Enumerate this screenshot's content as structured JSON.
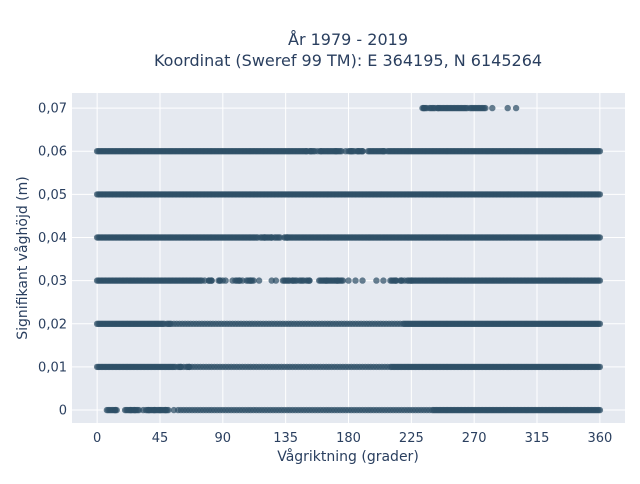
{
  "chart_data": {
    "type": "scatter",
    "title": "År 1979 - 2019",
    "subtitle": "Koordinat (Sweref 99 TM): E 364195, N 6145264",
    "xlabel": "Vågriktning (grader)",
    "ylabel": "Signifikant våghöjd (m)",
    "xlim": [
      -18,
      378
    ],
    "ylim": [
      -0.003,
      0.0735
    ],
    "x_ticks": [
      0,
      45,
      90,
      135,
      180,
      225,
      270,
      315,
      360
    ],
    "y_ticks": [
      0,
      0.01,
      0.02,
      0.03,
      0.04,
      0.05,
      0.06,
      0.07
    ],
    "y_tick_labels": [
      "0",
      "0,01",
      "0,02",
      "0,03",
      "0,04",
      "0,05",
      "0,06",
      "0,07"
    ],
    "grid": true,
    "background": "#e5e9f0",
    "marker_color": "#2e4f66",
    "series": [
      {
        "y": 0.07,
        "ranges": [
          [
            233,
            236
          ],
          [
            238,
            242
          ],
          [
            244,
            265
          ],
          [
            267,
            278
          ]
        ],
        "points": [
          234,
          244,
          283,
          294,
          300
        ]
      },
      {
        "y": 0.06,
        "ranges": [
          [
            0,
            150
          ],
          [
            152,
            155
          ],
          [
            160,
            175
          ],
          [
            180,
            183
          ],
          [
            186,
            190
          ],
          [
            194,
            205
          ],
          [
            208,
            360
          ]
        ],
        "points": [
          150,
          153,
          156,
          158,
          160,
          171,
          178,
          182,
          184,
          187,
          190,
          205,
          206
        ]
      },
      {
        "y": 0.05,
        "ranges": [
          [
            0,
            360
          ]
        ],
        "points": []
      },
      {
        "y": 0.04,
        "ranges": [
          [
            0,
            115
          ],
          [
            118,
            125
          ],
          [
            128,
            130
          ],
          [
            134,
            140
          ],
          [
            142,
            360
          ]
        ],
        "points": [
          117,
          120,
          125,
          127,
          131,
          136,
          141
        ]
      },
      {
        "y": 0.03,
        "ranges": [
          [
            0,
            75
          ],
          [
            80,
            82
          ],
          [
            87,
            88
          ],
          [
            99,
            102
          ],
          [
            107,
            112
          ],
          [
            134,
            138
          ],
          [
            140,
            143
          ],
          [
            145,
            147
          ],
          [
            150,
            152
          ],
          [
            159,
            175
          ],
          [
            210,
            214
          ],
          [
            217,
            218
          ],
          [
            222,
            360
          ]
        ],
        "points": [
          77,
          80,
          82,
          88,
          90,
          92,
          97,
          102,
          104,
          110,
          116,
          125,
          128,
          133,
          140,
          148,
          152,
          164,
          172,
          176,
          180,
          185,
          190,
          200,
          205,
          214,
          218,
          220,
          225
        ]
      },
      {
        "y": 0.02,
        "ranges": [
          [
            0,
            48
          ],
          [
            50,
            52
          ],
          [
            220,
            360
          ]
        ],
        "points": [
          53,
          55,
          57,
          59,
          61,
          63,
          65,
          67,
          69,
          71,
          73,
          75,
          77,
          79,
          81,
          83,
          85,
          87,
          89,
          91,
          93,
          95,
          97,
          99,
          101,
          103,
          105,
          107,
          109,
          111,
          113,
          115,
          117,
          119,
          121,
          123,
          125,
          127,
          129,
          131,
          133,
          135,
          137,
          139,
          141,
          143,
          145,
          147,
          149,
          151,
          153,
          155,
          157,
          159,
          161,
          163,
          165,
          167,
          169,
          171,
          173,
          175,
          177,
          179,
          181,
          183,
          185,
          187,
          189,
          191,
          193,
          195,
          197,
          199,
          201,
          203,
          205,
          207,
          209,
          211,
          213,
          215,
          217,
          219
        ]
      },
      {
        "y": 0.01,
        "ranges": [
          [
            0,
            55
          ],
          [
            58,
            60
          ],
          [
            64,
            66
          ],
          [
            210,
            360
          ]
        ],
        "points": [
          56,
          60,
          62,
          66,
          68,
          70,
          72,
          74,
          76,
          78,
          80,
          82,
          84,
          86,
          88,
          90,
          92,
          94,
          96,
          98,
          100,
          102,
          104,
          106,
          108,
          110,
          112,
          114,
          116,
          118,
          120,
          122,
          124,
          126,
          128,
          130,
          132,
          134,
          136,
          138,
          140,
          142,
          144,
          146,
          148,
          150,
          152,
          154,
          156,
          158,
          160,
          162,
          164,
          166,
          168,
          170,
          172,
          174,
          176,
          178,
          180,
          182,
          184,
          186,
          188,
          190,
          192,
          194,
          196,
          198,
          200,
          202,
          204,
          206,
          208
        ]
      },
      {
        "y": 0.0,
        "ranges": [
          [
            8,
            14
          ],
          [
            20,
            30
          ],
          [
            35,
            50
          ],
          [
            240,
            360
          ]
        ],
        "points": [
          7,
          13,
          24,
          27,
          33,
          37,
          41,
          45,
          49,
          51,
          55,
          58,
          60,
          62,
          64,
          66,
          68,
          70,
          72,
          74,
          76,
          78,
          80,
          82,
          84,
          86,
          88,
          90,
          92,
          94,
          96,
          98,
          100,
          102,
          104,
          106,
          108,
          110,
          112,
          114,
          116,
          118,
          120,
          122,
          124,
          126,
          128,
          130,
          132,
          134,
          136,
          138,
          140,
          142,
          144,
          146,
          148,
          150,
          152,
          154,
          156,
          158,
          160,
          162,
          164,
          166,
          168,
          170,
          172,
          174,
          176,
          178,
          180,
          182,
          184,
          186,
          188,
          190,
          192,
          194,
          196,
          198,
          200,
          202,
          204,
          206,
          208,
          210,
          212,
          214,
          216,
          218,
          220,
          222,
          224,
          226,
          228,
          230,
          232,
          234,
          236,
          238
        ]
      }
    ]
  }
}
